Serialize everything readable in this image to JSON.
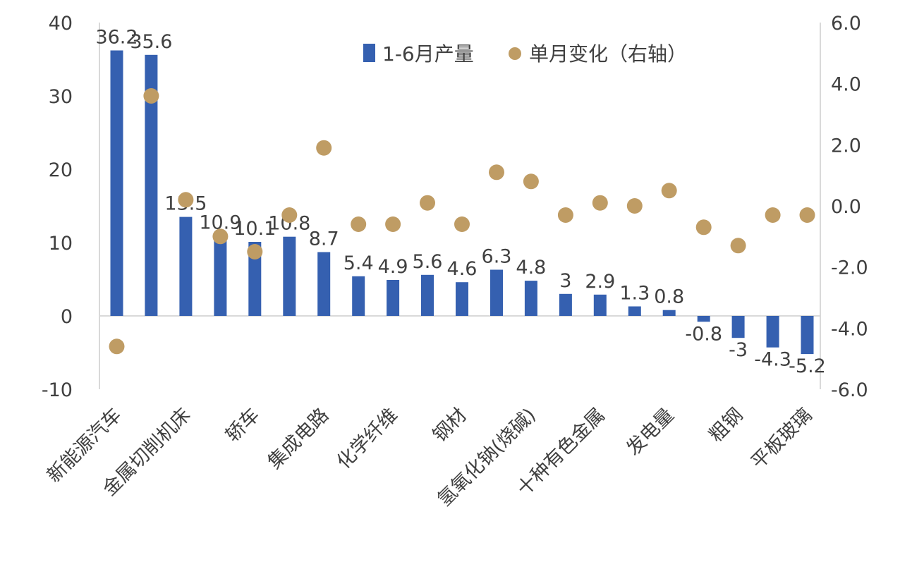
{
  "chart_data": {
    "type": "bar",
    "categories": [
      "新能源汽车",
      "",
      "金属切削机床",
      "",
      "轿车",
      "",
      "集成电路",
      "",
      "化学纤维",
      "",
      "钢材",
      "",
      "氢氧化钠(烧碱)",
      "",
      "十种有色金属",
      "",
      "发电量",
      "",
      "粗钢",
      "",
      "平板玻璃"
    ],
    "series": [
      {
        "name": "1-6月产量",
        "axis": "left",
        "kind": "bar",
        "color": "#3560b0",
        "values": [
          36.2,
          35.6,
          13.5,
          10.9,
          10.1,
          10.8,
          8.7,
          5.4,
          4.9,
          5.6,
          4.6,
          6.3,
          4.8,
          3,
          2.9,
          1.3,
          0.8,
          -0.8,
          -3,
          -4.3,
          -5.2
        ],
        "labels": [
          "36.2",
          "35.6",
          "13.5",
          "10.9",
          "10.1",
          "10.8",
          "8.7",
          "5.4",
          "4.9",
          "5.6",
          "4.6",
          "6.3",
          "4.8",
          "3",
          "2.9",
          "1.3",
          "0.8",
          "-0.8",
          "-3",
          "-4.3",
          "-5.2"
        ]
      },
      {
        "name": "单月变化（右轴）",
        "axis": "right",
        "kind": "scatter",
        "color": "#bf9c64",
        "values": [
          -4.6,
          3.6,
          0.2,
          -1.0,
          -1.5,
          -0.3,
          1.9,
          -0.6,
          -0.6,
          0.1,
          -0.6,
          1.1,
          0.8,
          -0.3,
          0.1,
          0.0,
          0.5,
          -0.7,
          -1.3,
          -0.3,
          -0.3
        ]
      }
    ],
    "y_left": {
      "min": -10,
      "max": 40,
      "ticks": [
        40,
        30,
        20,
        10,
        0,
        -10
      ],
      "tick_labels": [
        "40",
        "30",
        "20",
        "10",
        "0",
        "-10"
      ]
    },
    "y_right": {
      "min": -6,
      "max": 6,
      "ticks": [
        6,
        4,
        2,
        0,
        -2,
        -4,
        -6
      ],
      "tick_labels": [
        "6.0",
        "4.0",
        "2.0",
        "0.0",
        "-2.0",
        "-4.0",
        "-6.0"
      ]
    },
    "legend_position": "top-right",
    "grid": false
  }
}
